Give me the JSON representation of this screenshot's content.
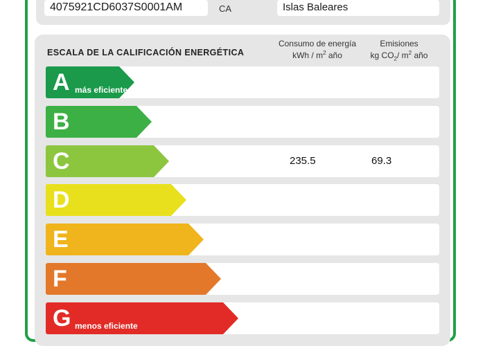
{
  "header": {
    "reference": "4075921CD6037S0001AM",
    "ca_label": "CA",
    "region": "Islas Baleares"
  },
  "scale": {
    "title": "ESCALA DE LA CALIFICACIÓN ENERGÉTICA",
    "energy_header_line1": "Consumo de energía",
    "energy_header_unit": "kWh  / m",
    "energy_header_unit_sup": "2",
    "energy_header_unit_suffix": " año",
    "emissions_header_line1": "Emisiones",
    "emissions_header_unit": "kg CO",
    "emissions_header_sub": "2",
    "emissions_header_mid": "/ m",
    "emissions_header_sup": "2",
    "emissions_header_suffix": " año"
  },
  "ratings": [
    {
      "letter": "A",
      "note": "más eficiente",
      "color": "#1a9a4a"
    },
    {
      "letter": "B",
      "note": "",
      "color": "#3cb044"
    },
    {
      "letter": "C",
      "note": "",
      "color": "#8cc63f",
      "energy": "235.5",
      "emissions": "69.3"
    },
    {
      "letter": "D",
      "note": "",
      "color": "#e8e01c"
    },
    {
      "letter": "E",
      "note": "",
      "color": "#f0b41c"
    },
    {
      "letter": "F",
      "note": "",
      "color": "#e4782a"
    },
    {
      "letter": "G",
      "note": "menos eficiente",
      "color": "#e22b26"
    }
  ]
}
